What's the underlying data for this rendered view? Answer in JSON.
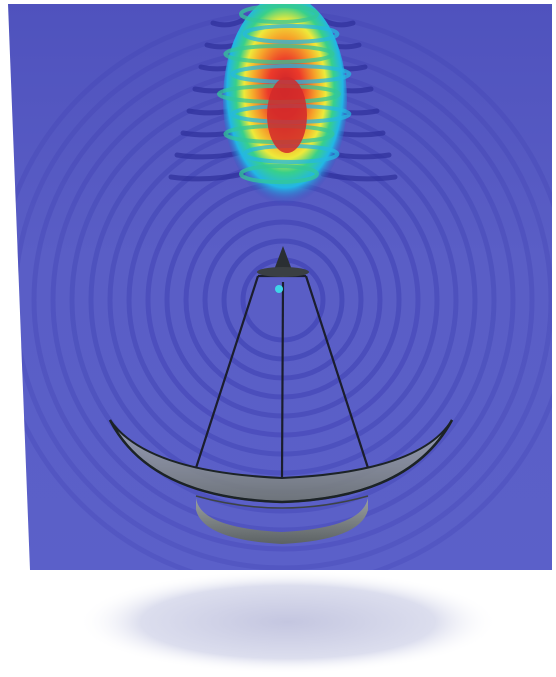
{
  "scene": {
    "colors": {
      "field": "#5a5fc8",
      "field_dark": "#2e2f9a",
      "ring": "#3a3cb0",
      "hot": "#d22a2a",
      "warm": "#f59a2a",
      "mid": "#f2e43a",
      "cool": "#33c79a",
      "cold": "#25b8e0",
      "dish": "#8c9294",
      "dish_rim": "#1c2326",
      "strut": "#1b1e2e",
      "feed": "#2a2f33",
      "shadow": "#c9cbe3"
    },
    "ring_count": 14,
    "beam_lobe_count": 9
  }
}
